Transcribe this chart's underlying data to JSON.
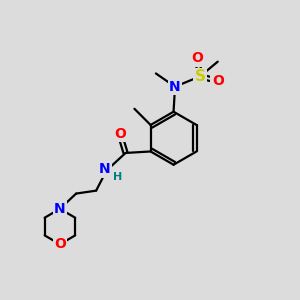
{
  "background_color": "#dcdcdc",
  "bond_color": "#000000",
  "atom_colors": {
    "N": "#0000ff",
    "O": "#ff0000",
    "S": "#cccc00",
    "C": "#000000",
    "H": "#008080"
  },
  "figsize": [
    3.0,
    3.0
  ],
  "dpi": 100
}
